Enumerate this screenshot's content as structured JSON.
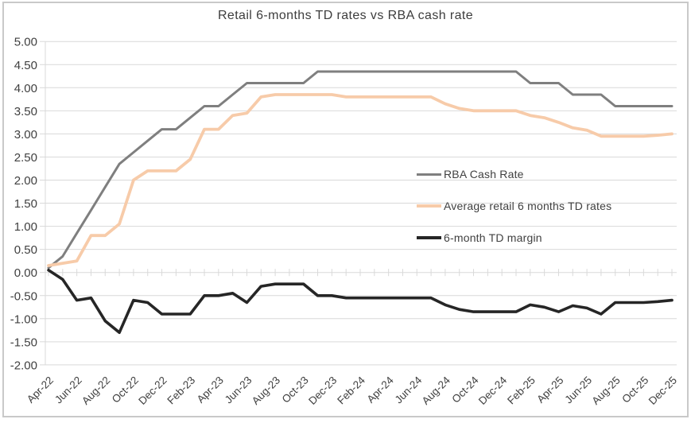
{
  "chart_data": {
    "type": "line",
    "title": "Retail 6-months TD rates vs RBA cash rate",
    "x": [
      "Apr-22",
      "May-22",
      "Jun-22",
      "Jul-22",
      "Aug-22",
      "Sep-22",
      "Oct-22",
      "Nov-22",
      "Dec-22",
      "Jan-23",
      "Feb-23",
      "Mar-23",
      "Apr-23",
      "May-23",
      "Jun-23",
      "Jul-23",
      "Aug-23",
      "Sep-23",
      "Oct-23",
      "Nov-23",
      "Dec-23",
      "Jan-24",
      "Feb-24",
      "Mar-24",
      "Apr-24",
      "May-24",
      "Jun-24",
      "Jul-24",
      "Aug-24",
      "Sep-24",
      "Oct-24",
      "Nov-24",
      "Dec-24",
      "Jan-25",
      "Feb-25",
      "Mar-25",
      "Apr-25",
      "May-25",
      "Jun-25",
      "Jul-25",
      "Aug-25",
      "Sep-25",
      "Oct-25",
      "Nov-25",
      "Dec-25"
    ],
    "x_label_every": 2,
    "ylim": [
      -2.0,
      5.0
    ],
    "ytick_step": 0.5,
    "grid": "horizontal",
    "legend_position": "inside-right",
    "grid_color": "#d9d9d9",
    "axis_text_color": "#404040",
    "series": [
      {
        "name": "RBA Cash Rate",
        "color": "#7f7f7f",
        "stroke_width": 3,
        "values": [
          0.1,
          0.35,
          0.85,
          1.35,
          1.85,
          2.35,
          2.6,
          2.85,
          3.1,
          3.1,
          3.35,
          3.6,
          3.6,
          3.85,
          4.1,
          4.1,
          4.1,
          4.1,
          4.1,
          4.35,
          4.35,
          4.35,
          4.35,
          4.35,
          4.35,
          4.35,
          4.35,
          4.35,
          4.35,
          4.35,
          4.35,
          4.35,
          4.35,
          4.35,
          4.1,
          4.1,
          4.1,
          3.85,
          3.85,
          3.85,
          3.6,
          3.6,
          3.6,
          3.6,
          3.6
        ]
      },
      {
        "name": "Average retail 6 months TD rates",
        "color": "#f7cba9",
        "stroke_width": 3.8,
        "values": [
          0.15,
          0.2,
          0.25,
          0.8,
          0.8,
          1.05,
          2.0,
          2.2,
          2.2,
          2.2,
          2.45,
          3.1,
          3.1,
          3.4,
          3.45,
          3.8,
          3.85,
          3.85,
          3.85,
          3.85,
          3.85,
          3.8,
          3.8,
          3.8,
          3.8,
          3.8,
          3.8,
          3.8,
          3.65,
          3.55,
          3.5,
          3.5,
          3.5,
          3.5,
          3.4,
          3.35,
          3.25,
          3.13,
          3.08,
          2.95,
          2.95,
          2.95,
          2.95,
          2.97,
          3.0
        ]
      },
      {
        "name": "6-month TD margin",
        "color": "#262626",
        "stroke_width": 3.6,
        "values": [
          0.05,
          -0.15,
          -0.6,
          -0.55,
          -1.05,
          -1.3,
          -0.6,
          -0.65,
          -0.9,
          -0.9,
          -0.9,
          -0.5,
          -0.5,
          -0.45,
          -0.65,
          -0.3,
          -0.25,
          -0.25,
          -0.25,
          -0.5,
          -0.5,
          -0.55,
          -0.55,
          -0.55,
          -0.55,
          -0.55,
          -0.55,
          -0.55,
          -0.7,
          -0.8,
          -0.85,
          -0.85,
          -0.85,
          -0.85,
          -0.7,
          -0.75,
          -0.85,
          -0.72,
          -0.77,
          -0.9,
          -0.65,
          -0.65,
          -0.65,
          -0.63,
          -0.6
        ]
      }
    ]
  }
}
